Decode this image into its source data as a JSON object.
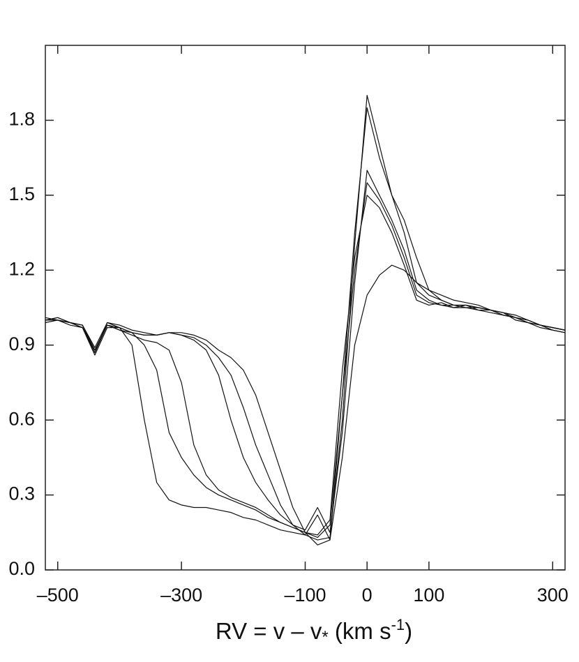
{
  "chart_data": {
    "type": "line",
    "x_label_parts": [
      "RV = v – v",
      "*",
      " (km s",
      "-1",
      ")"
    ],
    "xlim": [
      -520,
      320
    ],
    "ylim": [
      0,
      2.1
    ],
    "xticks": [
      {
        "value": -500,
        "label": "–500"
      },
      {
        "value": -300,
        "label": "–300"
      },
      {
        "value": -100,
        "label": "–100"
      },
      0,
      100,
      300
    ],
    "yticks": [
      {
        "value": 0,
        "label": "0.0"
      },
      0.3,
      0.6,
      0.9,
      1.2,
      1.5,
      1.8
    ],
    "grid": false,
    "x": [
      -520,
      -500,
      -480,
      -460,
      -440,
      -420,
      -400,
      -380,
      -360,
      -340,
      -320,
      -300,
      -280,
      -260,
      -240,
      -220,
      -200,
      -180,
      -160,
      -140,
      -120,
      -100,
      -80,
      -60,
      -40,
      -20,
      0,
      20,
      40,
      60,
      80,
      100,
      120,
      140,
      160,
      180,
      200,
      220,
      240,
      260,
      280,
      300,
      320
    ],
    "series": [
      {
        "color": "#111111",
        "values": [
          1.0,
          1.01,
          0.99,
          0.97,
          0.86,
          0.97,
          0.97,
          0.9,
          0.6,
          0.35,
          0.28,
          0.26,
          0.25,
          0.25,
          0.24,
          0.23,
          0.21,
          0.2,
          0.18,
          0.16,
          0.15,
          0.14,
          0.12,
          0.13,
          0.6,
          1.3,
          1.9,
          1.7,
          1.5,
          1.35,
          1.15,
          1.1,
          1.08,
          1.06,
          1.06,
          1.05,
          1.04,
          1.03,
          1.01,
          1.0,
          0.98,
          0.97,
          0.96
        ]
      },
      {
        "color": "#111111",
        "values": [
          1.0,
          1.0,
          0.99,
          0.98,
          0.88,
          0.98,
          0.97,
          0.95,
          0.9,
          0.8,
          0.55,
          0.45,
          0.38,
          0.33,
          0.3,
          0.28,
          0.26,
          0.24,
          0.21,
          0.19,
          0.17,
          0.15,
          0.13,
          0.18,
          0.7,
          1.2,
          1.55,
          1.48,
          1.38,
          1.25,
          1.1,
          1.07,
          1.06,
          1.06,
          1.05,
          1.05,
          1.04,
          1.02,
          1.01,
          0.99,
          0.98,
          0.97,
          0.96
        ]
      },
      {
        "color": "#111111",
        "values": [
          0.99,
          1.0,
          0.98,
          0.97,
          0.87,
          0.98,
          0.96,
          0.94,
          0.92,
          0.91,
          0.88,
          0.75,
          0.5,
          0.38,
          0.32,
          0.29,
          0.27,
          0.25,
          0.22,
          0.19,
          0.17,
          0.15,
          0.14,
          0.2,
          0.8,
          1.25,
          1.5,
          1.45,
          1.35,
          1.22,
          1.08,
          1.06,
          1.07,
          1.05,
          1.05,
          1.04,
          1.04,
          1.03,
          1.0,
          0.99,
          0.98,
          0.96,
          0.95
        ]
      },
      {
        "color": "#111111",
        "values": [
          1.0,
          1.01,
          0.99,
          0.98,
          0.89,
          0.99,
          0.97,
          0.95,
          0.94,
          0.94,
          0.95,
          0.94,
          0.92,
          0.88,
          0.78,
          0.6,
          0.45,
          0.35,
          0.28,
          0.22,
          0.18,
          0.16,
          0.25,
          0.15,
          0.55,
          1.15,
          1.6,
          1.5,
          1.4,
          1.28,
          1.12,
          1.08,
          1.06,
          1.05,
          1.06,
          1.04,
          1.03,
          1.02,
          1.01,
          0.99,
          0.97,
          0.96,
          0.95
        ]
      },
      {
        "color": "#111111",
        "values": [
          1.0,
          1.0,
          0.99,
          0.97,
          0.88,
          0.98,
          0.96,
          0.95,
          0.94,
          0.94,
          0.95,
          0.95,
          0.94,
          0.92,
          0.88,
          0.85,
          0.8,
          0.7,
          0.55,
          0.4,
          0.25,
          0.15,
          0.1,
          0.12,
          0.45,
          0.9,
          1.1,
          1.18,
          1.22,
          1.2,
          1.15,
          1.12,
          1.1,
          1.08,
          1.07,
          1.06,
          1.04,
          1.03,
          1.02,
          1.0,
          0.98,
          0.97,
          0.96
        ]
      },
      {
        "color": "#111111",
        "values": [
          1.01,
          1.0,
          0.99,
          0.98,
          0.87,
          0.99,
          0.98,
          0.96,
          0.95,
          0.94,
          0.95,
          0.94,
          0.93,
          0.9,
          0.85,
          0.78,
          0.65,
          0.5,
          0.38,
          0.26,
          0.18,
          0.14,
          0.22,
          0.12,
          0.7,
          1.35,
          1.85,
          1.65,
          1.5,
          1.4,
          1.25,
          1.12,
          1.08,
          1.06,
          1.06,
          1.05,
          1.04,
          1.02,
          1.01,
          1.0,
          0.98,
          0.97,
          0.96
        ]
      }
    ]
  }
}
